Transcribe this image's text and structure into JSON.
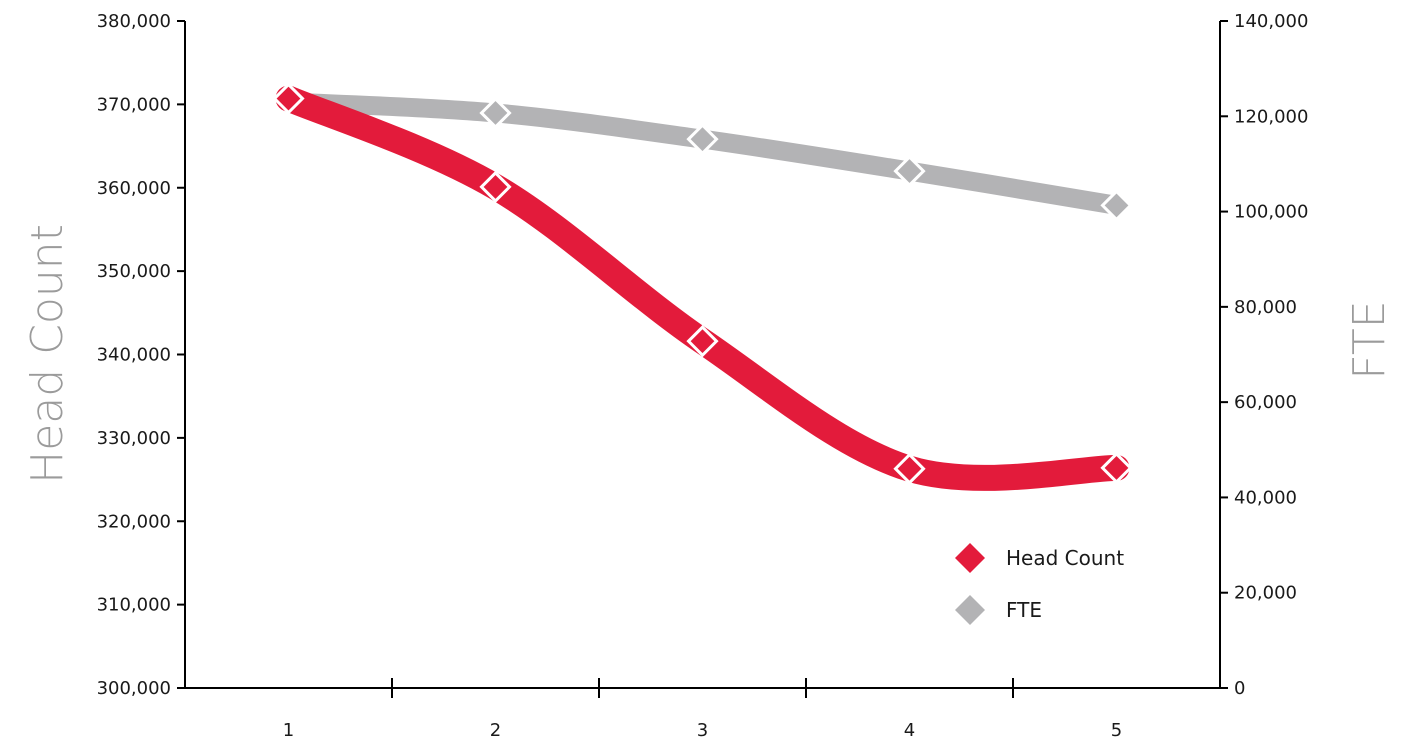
{
  "chart_data": {
    "type": "line",
    "title": "",
    "x": [
      1,
      2,
      3,
      4,
      5
    ],
    "x_tick_labels": [
      "1",
      "2",
      "3",
      "4",
      "5"
    ],
    "y_left": {
      "label": "Head Count",
      "range": [
        300000,
        380000
      ],
      "tick_labels": [
        "300,000",
        "310,000",
        "320,000",
        "330,000",
        "340,000",
        "350,000",
        "360,000",
        "370,000",
        "380,000"
      ]
    },
    "y_right": {
      "label": "FTE",
      "range": [
        0,
        140000
      ],
      "tick_labels": [
        "0",
        "20,000",
        "40,000",
        "60,000",
        "80,000",
        "100,000",
        "120,000",
        "140,000"
      ]
    },
    "series": [
      {
        "name": "Head Count",
        "axis": "left",
        "color": "#e31b3b",
        "values": [
          370700,
          360100,
          341600,
          326300,
          326400
        ]
      },
      {
        "name": "FTE",
        "axis": "right",
        "color": "#b3b3b5",
        "values": [
          123000,
          120700,
          115200,
          108500,
          101300
        ]
      }
    ],
    "legend": {
      "position": "bottom-right",
      "entries": [
        "Head Count",
        "FTE"
      ]
    },
    "grid": false
  }
}
